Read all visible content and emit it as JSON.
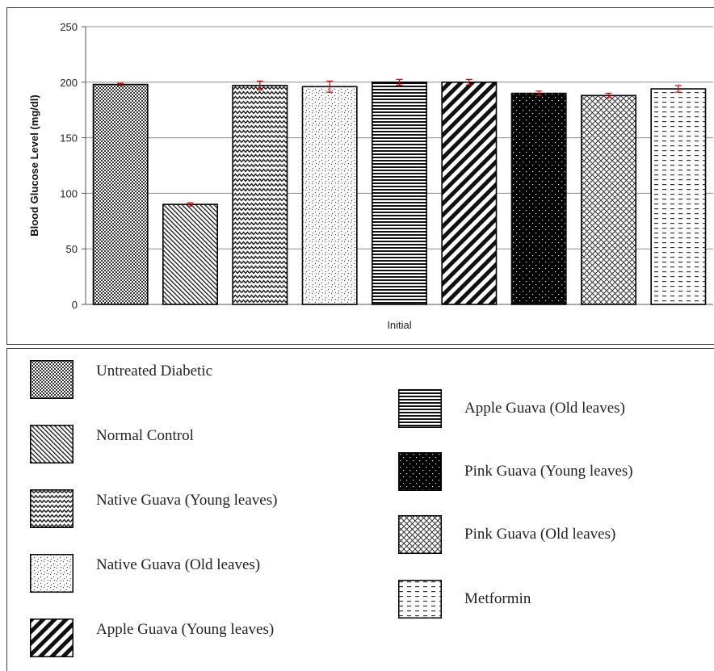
{
  "chart_data": {
    "type": "bar",
    "title": "",
    "xlabel": "Initial",
    "ylabel": "Blood Glucose Level (mg/dl)",
    "ylim": [
      0,
      250
    ],
    "yticks": [
      0,
      50,
      100,
      150,
      200,
      250
    ],
    "grid": true,
    "legend_position": "bottom",
    "series": [
      {
        "name": "Untreated Diabetic",
        "value": 198,
        "error": 1,
        "pattern": "fine-check"
      },
      {
        "name": "Normal Control",
        "value": 90,
        "error": 1.5,
        "pattern": "diagonal-fine"
      },
      {
        "name": "Native Guava (Young leaves)",
        "value": 197,
        "error": 4,
        "pattern": "zigzag"
      },
      {
        "name": "Native Guava (Old leaves)",
        "value": 196,
        "error": 5,
        "pattern": "dots-sparse"
      },
      {
        "name": "Apple Guava (Old leaves)",
        "value": 200,
        "error": 2.5,
        "pattern": "horizontal"
      },
      {
        "name": "Apple Guava (Young leaves)",
        "value": 200,
        "error": 2.5,
        "pattern": "diagonal-wide"
      },
      {
        "name": "Pink Guava (Young leaves)",
        "value": 190,
        "error": 2,
        "pattern": "dots-on-black"
      },
      {
        "name": "Pink Guava (Old leaves)",
        "value": 188,
        "error": 2,
        "pattern": "crosshatch"
      },
      {
        "name": "Metformin",
        "value": 194,
        "error": 3,
        "pattern": "dashes"
      }
    ],
    "error_bar_color": "#d40000"
  },
  "legend": {
    "items": [
      {
        "label": "Untreated Diabetic",
        "pattern": "fine-check"
      },
      {
        "label": "Normal Control",
        "pattern": "diagonal-fine"
      },
      {
        "label": "Native Guava (Young leaves)",
        "pattern": "zigzag"
      },
      {
        "label": "Native Guava (Old leaves)",
        "pattern": "dots-sparse"
      },
      {
        "label": "Apple Guava (Young leaves)",
        "pattern": "diagonal-wide"
      },
      {
        "label": "Apple Guava (Old leaves)",
        "pattern": "horizontal"
      },
      {
        "label": "Pink Guava (Young leaves)",
        "pattern": "dots-on-black"
      },
      {
        "label": "Pink Guava (Old leaves)",
        "pattern": "crosshatch"
      },
      {
        "label": "Metformin",
        "pattern": "dashes"
      }
    ]
  }
}
